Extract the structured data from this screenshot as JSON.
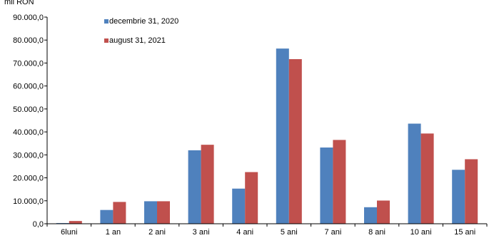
{
  "chart_data": {
    "type": "bar",
    "ylabel": "mil RON",
    "ylim": [
      0,
      90000
    ],
    "ytick_step": 10000,
    "ytick_labels": [
      "0,0",
      "10.000,0",
      "20.000,0",
      "30.000,0",
      "40.000,0",
      "50.000,0",
      "60.000,0",
      "70.000,0",
      "80.000,0",
      "90.000,0"
    ],
    "categories": [
      "6luni",
      "1 an",
      "2 ani",
      "3 ani",
      "4 ani",
      "5 ani",
      "7 ani",
      "8 ani",
      "10 ani",
      "15 ani"
    ],
    "series": [
      {
        "name": "decembrie 31, 2020",
        "color": "#4F81BD",
        "values": [
          300,
          6000,
          9800,
          32000,
          15300,
          76300,
          33200,
          7200,
          43600,
          23500
        ]
      },
      {
        "name": "august 31, 2021",
        "color": "#C0504D",
        "values": [
          1200,
          9500,
          9800,
          34400,
          22500,
          71700,
          36500,
          10100,
          39300,
          28100
        ]
      }
    ],
    "grid": false,
    "legend_position": "top-left"
  }
}
